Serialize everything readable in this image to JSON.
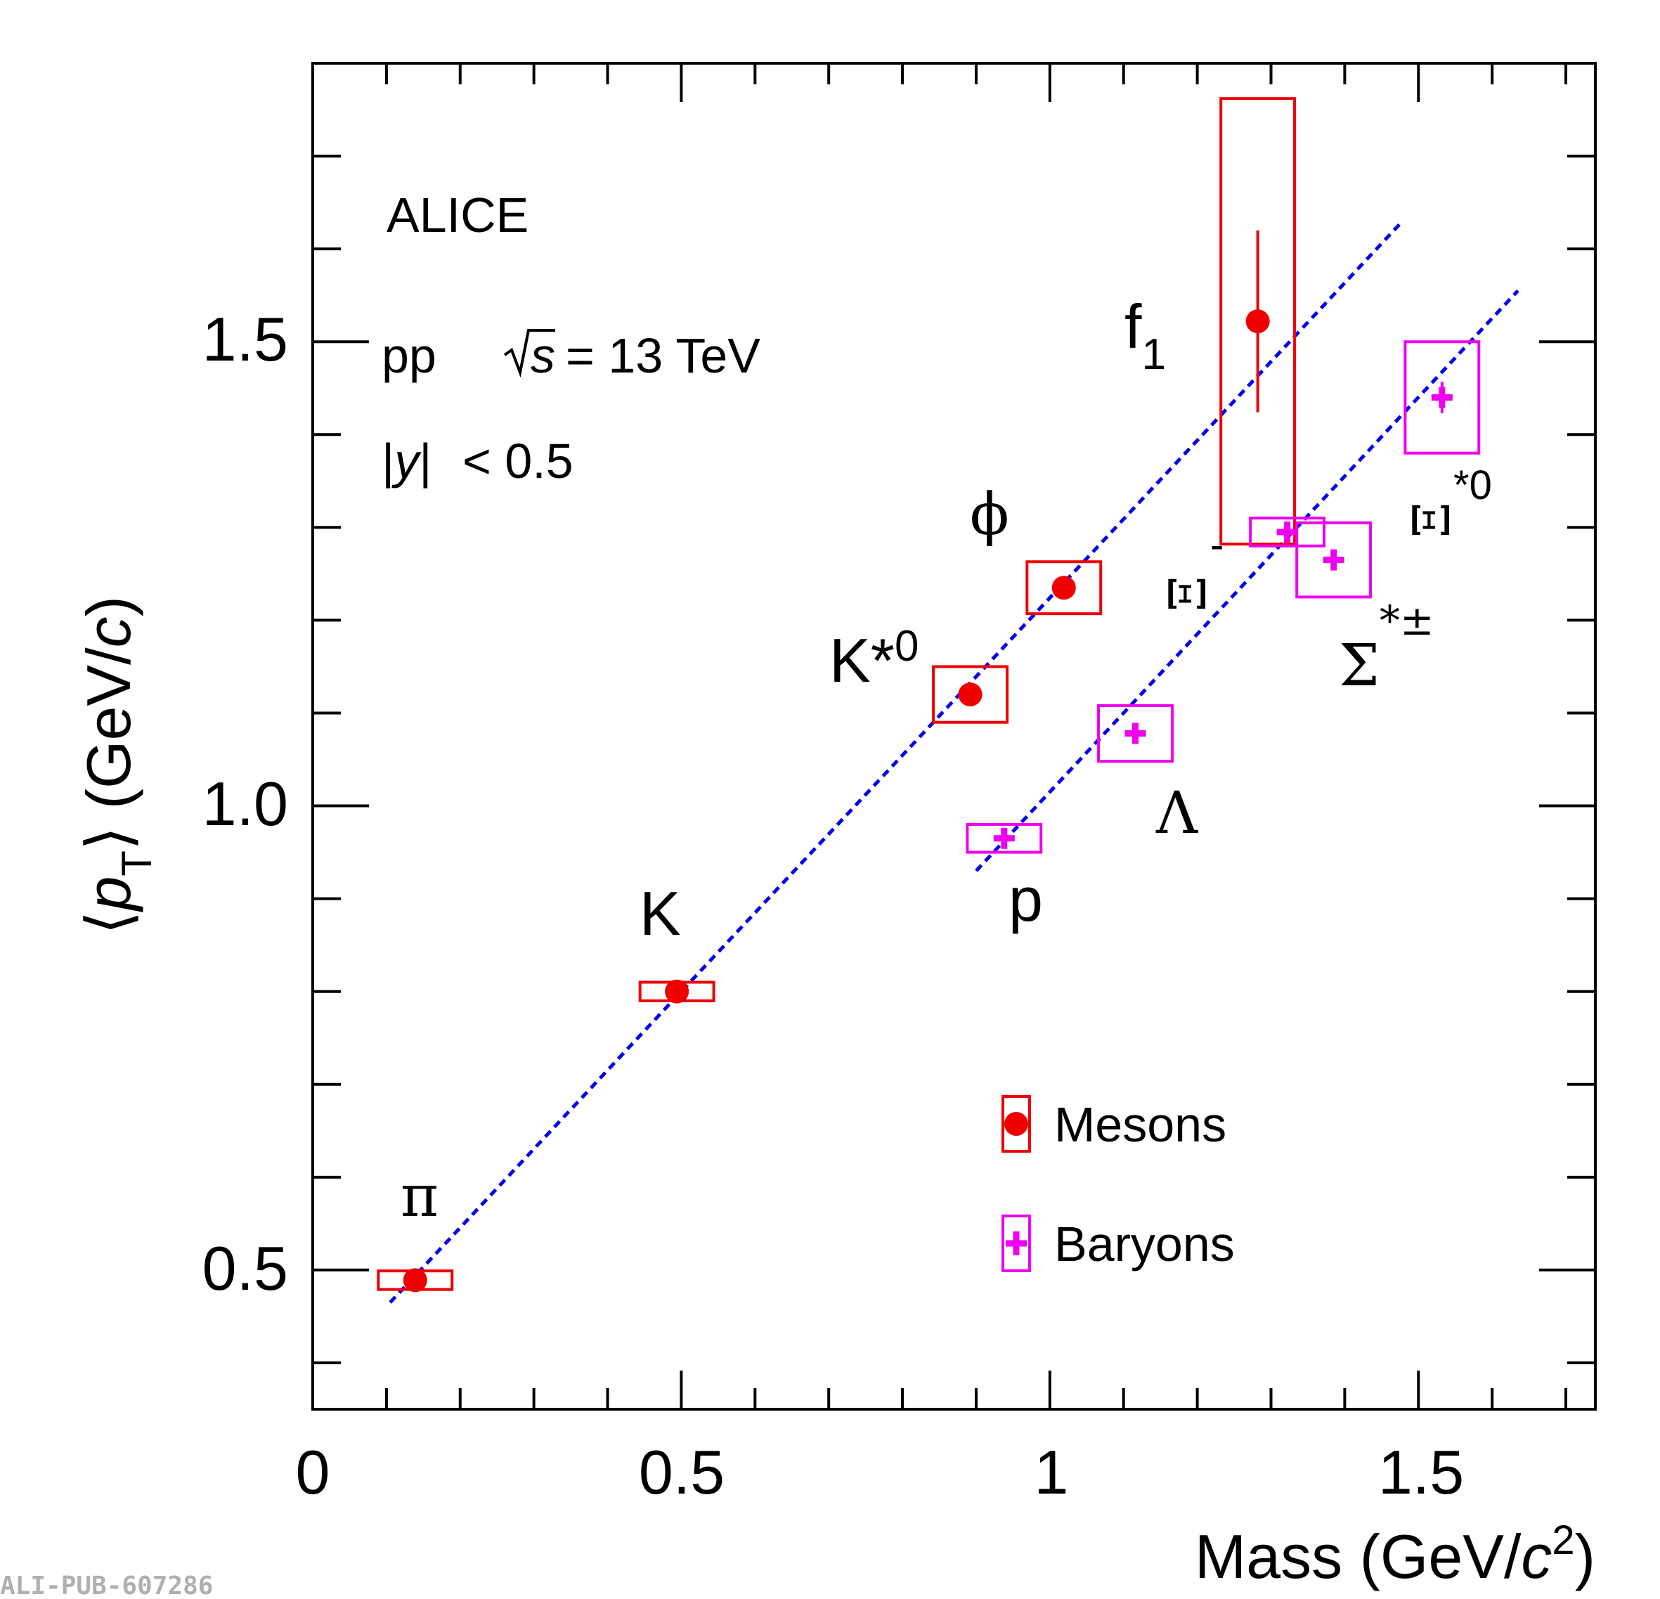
{
  "chart_data": {
    "type": "scatter",
    "xlabel": "Mass (GeV/c²)",
    "ylabel": "⟨p_T⟩ (GeV/c)",
    "xlim": [
      0,
      1.74
    ],
    "ylim": [
      0.35,
      1.8
    ],
    "x_tick_labels": [
      "0",
      "0.5",
      "1",
      "1.5"
    ],
    "y_tick_labels": [
      "0.5",
      "1.0",
      "1.5"
    ],
    "x_ticks": [
      0,
      0.5,
      1.0,
      1.5
    ],
    "y_ticks": [
      0.5,
      1.0,
      1.5
    ],
    "annotations": {
      "experiment": "ALICE",
      "system": "pp",
      "energy": "= 13 TeV",
      "rapidity": "< 0.5"
    },
    "legend": {
      "placement": "bottom-right",
      "entries": [
        "Mesons",
        "Baryons"
      ]
    },
    "series": [
      {
        "name": "Mesons",
        "color": "#ee0000",
        "points": [
          {
            "label": "π",
            "x": 0.139,
            "y": 0.489,
            "stat": 0.003,
            "sys_w": 0.1,
            "sys": 0.01
          },
          {
            "label": "K",
            "x": 0.494,
            "y": 0.8,
            "stat": 0.004,
            "sys_w": 0.1,
            "sys": 0.01
          },
          {
            "label": "K*0",
            "x": 0.892,
            "y": 1.12,
            "stat": 0.006,
            "sys_w": 0.1,
            "sys": 0.03
          },
          {
            "label": "ϕ",
            "x": 1.019,
            "y": 1.235,
            "stat": 0.008,
            "sys_w": 0.1,
            "sys": 0.028
          },
          {
            "label": "f1",
            "x": 1.282,
            "y": 1.522,
            "stat": 0.098,
            "sys_w": 0.1,
            "sys": 0.24
          }
        ]
      },
      {
        "name": "Baryons",
        "color": "#ee00ee",
        "points": [
          {
            "label": "p",
            "x": 0.938,
            "y": 0.965,
            "stat": 0.004,
            "sys_w": 0.1,
            "sys": 0.015
          },
          {
            "label": "Λ",
            "x": 1.116,
            "y": 1.078,
            "stat": 0.008,
            "sys_w": 0.1,
            "sys": 0.03
          },
          {
            "label": "Ξ-",
            "x": 1.322,
            "y": 1.295,
            "stat": 0.008,
            "sys_w": 0.1,
            "sys": 0.015
          },
          {
            "label": "Σ*±",
            "x": 1.385,
            "y": 1.265,
            "stat": 0.01,
            "sys_w": 0.1,
            "sys": 0.04
          },
          {
            "label": "Ξ*0",
            "x": 1.532,
            "y": 1.44,
            "stat": 0.017,
            "sys_w": 0.1,
            "sys": 0.06
          }
        ]
      }
    ],
    "fit_lines": [
      {
        "name": "mesons-fit",
        "x1": 0.105,
        "y1": 0.465,
        "x2": 1.475,
        "y2": 1.627
      },
      {
        "name": "baryons-fit",
        "x1": 0.9,
        "y1": 0.93,
        "x2": 1.635,
        "y2": 1.555
      }
    ],
    "fit_line_color": "#0000ee"
  },
  "watermark": "ALI-PUB-607286"
}
